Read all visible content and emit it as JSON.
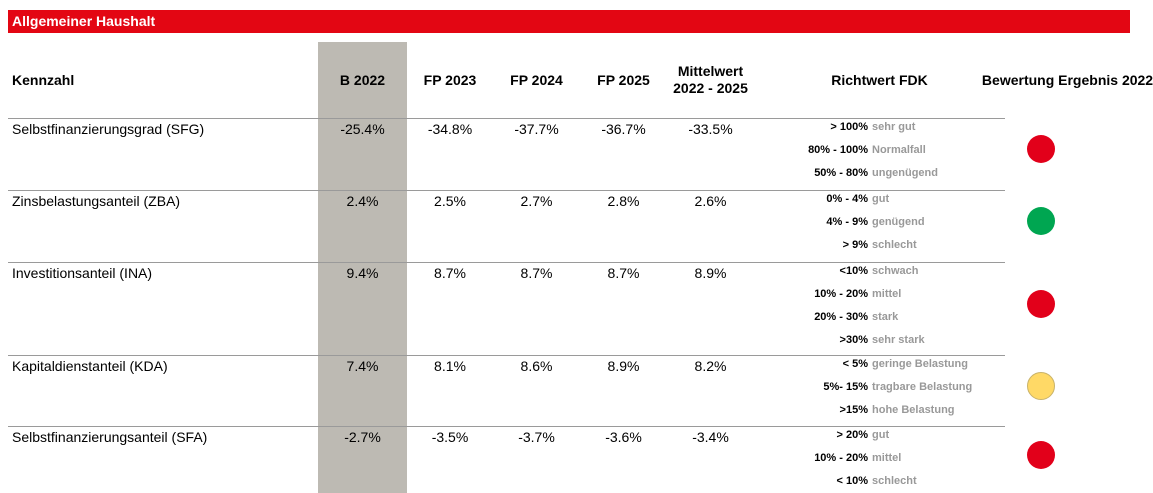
{
  "title": "Allgemeiner Haushalt",
  "table": {
    "header": [
      "Kennzahl",
      "B 2022",
      "FP 2023",
      "FP 2024",
      "FP 2025",
      "Mittelwert 2022 - 2025",
      "Richtwert FDK",
      "Bewertung Ergebnis 2022"
    ],
    "rows": [
      {
        "name": "Selbstfinanzierungsgrad (SFG)",
        "values": [
          "-25.4%",
          "-34.8%",
          "-37.7%",
          "-36.7%",
          "-33.5%"
        ],
        "richtwert": [
          {
            "range": "> 100%",
            "label": "sehr gut"
          },
          {
            "range": "80% - 100%",
            "label": "Normalfall"
          },
          {
            "range": "50% - 80%",
            "label": "ungenügend"
          }
        ],
        "color": "#e2001a"
      },
      {
        "name": "Zinsbelastungsanteil (ZBA)",
        "values": [
          "2.4%",
          "2.5%",
          "2.7%",
          "2.8%",
          "2.6%"
        ],
        "richtwert": [
          {
            "range": "0% - 4%",
            "label": "gut"
          },
          {
            "range": "4% - 9%",
            "label": "genügend"
          },
          {
            "range": "> 9%",
            "label": "schlecht"
          }
        ],
        "color": "#00a651"
      },
      {
        "name": "Investitionsanteil (INA)",
        "values": [
          "9.4%",
          "8.7%",
          "8.7%",
          "8.7%",
          "8.9%"
        ],
        "richtwert": [
          {
            "range": "<10%",
            "label": "schwach"
          },
          {
            "range": "10% - 20%",
            "label": "mittel"
          },
          {
            "range": "20% - 30%",
            "label": "stark"
          },
          {
            "range": ">30%",
            "label": "sehr stark"
          }
        ],
        "color": "#e2001a"
      },
      {
        "name": "Kapitaldienstanteil (KDA)",
        "values": [
          "7.4%",
          "8.1%",
          "8.6%",
          "8.9%",
          "8.2%"
        ],
        "richtwert": [
          {
            "range": "< 5%",
            "label": "geringe Belastung"
          },
          {
            "range": "5%- 15%",
            "label": "tragbare Belastung"
          },
          {
            "range": ">15%",
            "label": "hohe Belastung"
          }
        ],
        "color": "#ffd966"
      },
      {
        "name": "Selbstfinanzierungsanteil (SFA)",
        "values": [
          "-2.7%",
          "-3.5%",
          "-3.7%",
          "-3.6%",
          "-3.4%"
        ],
        "richtwert": [
          {
            "range": "> 20%",
            "label": "gut"
          },
          {
            "range": "10% - 20%",
            "label": "mittel"
          },
          {
            "range": "< 10%",
            "label": "schlecht"
          }
        ],
        "color": "#e2001a"
      }
    ]
  }
}
